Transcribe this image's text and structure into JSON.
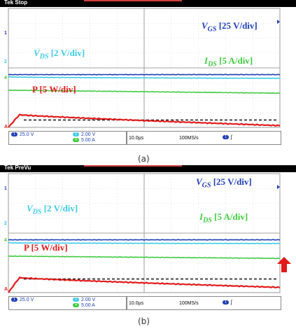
{
  "chart_data": [
    {
      "type": "line",
      "caption": "(a)",
      "status": "Tek Stop",
      "series": [
        {
          "name": "V_GS [25 V/div]",
          "color": "#1f3fb5",
          "div": 3.55,
          "end": 3.55
        },
        {
          "name": "V_DS [2 V/div]",
          "color": "#3ccbe8",
          "div": 3.4,
          "end": 3.3
        },
        {
          "name": "I_DS [5 A/div]",
          "color": "#3fcb3f",
          "div": 2.5,
          "end": 2.3
        },
        {
          "name": "P [5 W/div]",
          "color": "#e11a1a",
          "div": 0.6,
          "end": 0.12
        }
      ],
      "settings": {
        "ch1": "25.0 V",
        "ch2": "2.00 V",
        "ch4": "5.00 A",
        "ch1_badge": "1",
        "ch2_badge": "2",
        "ch4_badge": "4",
        "timebase": "10.0µs",
        "samplerate": "100MS/s"
      },
      "markers": {
        "g1": "1",
        "g2": "2",
        "g4": "4",
        "ga": "A"
      }
    },
    {
      "type": "line",
      "caption": "(b)",
      "status": "Tek PreVu",
      "series": [
        {
          "name": "V_GS [25 V/div]",
          "color": "#1f3fb5",
          "div": 3.55,
          "end": 3.55
        },
        {
          "name": "V_DS [2 V/div]",
          "color": "#3ccbe8",
          "div": 3.35,
          "end": 3.3
        },
        {
          "name": "I_DS [5 A/div]",
          "color": "#3fcb3f",
          "div": 2.45,
          "end": 2.3
        },
        {
          "name": "P [5 W/div]",
          "color": "#e11a1a",
          "div": 0.75,
          "end": 0.35
        }
      ],
      "settings": {
        "ch1": "25.0 V",
        "ch2": "2.00 V",
        "ch4": "5.00 A",
        "ch1_badge": "1",
        "ch2_badge": "2",
        "ch4_badge": "4",
        "timebase": "10.0µs",
        "samplerate": "100MS/s"
      },
      "markers": {
        "g1": "1",
        "g2": "2",
        "g4": "4",
        "ga": "A"
      }
    }
  ]
}
